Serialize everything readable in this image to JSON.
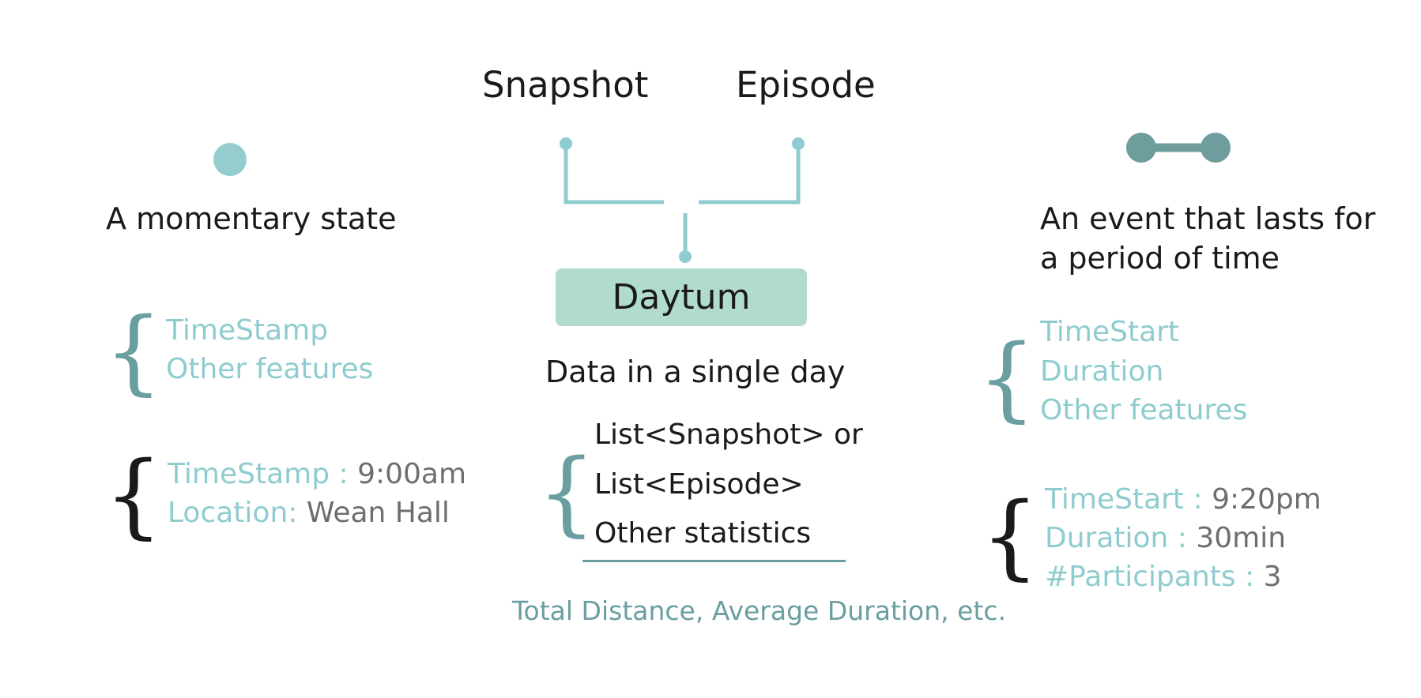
{
  "header": {
    "snapshot": "Snapshot",
    "episode": "Episode"
  },
  "left": {
    "description": "A momentary state",
    "features": [
      "TimeStamp",
      "Other features"
    ],
    "example": [
      {
        "key": "TimeStamp : ",
        "value": "9:00am"
      },
      {
        "key": "Location: ",
        "value": "Wean Hall"
      }
    ]
  },
  "center": {
    "box_label": "Daytum",
    "description": "Data in a single day",
    "items": [
      "List<Snapshot> or",
      "List<Episode>",
      "Other statistics"
    ],
    "statistics_note": "Total Distance, Average Duration, etc."
  },
  "right": {
    "description_line1": "An event that lasts for",
    "description_line2": "a period of time",
    "features": [
      "TimeStart",
      "Duration",
      "Other features"
    ],
    "example": [
      {
        "key": "TimeStart : ",
        "value": "9:20pm"
      },
      {
        "key": "Duration : ",
        "value": "30min"
      },
      {
        "key": "#Participants : ",
        "value": "3"
      }
    ]
  },
  "colors": {
    "teal_light": "#8fcccf",
    "teal_dark": "#6a9ea0",
    "box_fill": "#b0dbcd",
    "text": "#1a1a1a",
    "value_gray": "#6e6e6e"
  }
}
